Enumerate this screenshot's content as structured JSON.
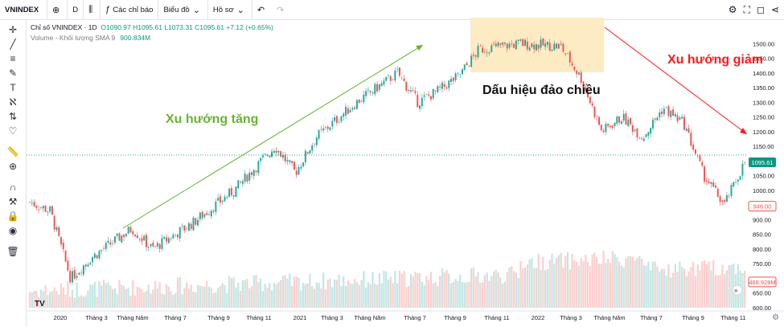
{
  "toolbar": {
    "symbol": "VNINDEX",
    "interval": "D",
    "indicators_label": "Các chỉ báo",
    "chart_label": "Biểu đồ",
    "profile_label": "Hồ sơ"
  },
  "legend": {
    "symbol_line": "Chỉ số VNINDEX · 1D",
    "ohlc": "O1090.97 H1095.61 L1073.31 C1095.61 +7.12 (+0.65%)",
    "volume_label": "Volume - Khối lượng SMA 9",
    "volume_value": "900.834M"
  },
  "annotations": {
    "up_trend": "Xu hướng tăng",
    "reversal": "Dấu hiệu đảo chiều",
    "down_trend": "Xu hướng giảm"
  },
  "colors": {
    "up": "#26a69a",
    "down": "#ef5350",
    "up_trend_arrow": "#69b335",
    "down_trend_arrow": "#ff1a1a",
    "reversal_box": "#fde9b8"
  },
  "chart_data": {
    "type": "candlestick",
    "title": "Chỉ số VNINDEX · 1D",
    "ylim": [
      600,
      1550
    ],
    "y_ticks": [
      600,
      650,
      700,
      750,
      800,
      850,
      900,
      950,
      1000,
      1050,
      1100,
      1150,
      1200,
      1250,
      1300,
      1350,
      1400,
      1450,
      1500
    ],
    "x_ticks": [
      "2020",
      "Tháng 3",
      "Tháng Năm",
      "Tháng 7",
      "Tháng 9",
      "Tháng 11",
      "2021",
      "Tháng 3",
      "Tháng Năm",
      "Tháng 7",
      "Tháng 9",
      "Tháng 11",
      "2022",
      "Tháng 3",
      "Tháng Năm",
      "Tháng 7",
      "Tháng 9",
      "Tháng 11"
    ],
    "last_price_label": "1095.61",
    "price_label_2": "946.00",
    "volume_label": "488.928M",
    "trend_path": [
      {
        "date": "2020-01",
        "close": 960
      },
      {
        "date": "2020-02",
        "close": 930
      },
      {
        "date": "2020-03",
        "close": 700
      },
      {
        "date": "2020-04",
        "close": 770
      },
      {
        "date": "2020-06",
        "close": 870
      },
      {
        "date": "2020-07",
        "close": 800
      },
      {
        "date": "2020-09",
        "close": 890
      },
      {
        "date": "2020-11",
        "close": 1000
      },
      {
        "date": "2021-01",
        "close": 1150
      },
      {
        "date": "2021-02",
        "close": 1060
      },
      {
        "date": "2021-03",
        "close": 1180
      },
      {
        "date": "2021-05",
        "close": 1300
      },
      {
        "date": "2021-07",
        "close": 1400
      },
      {
        "date": "2021-08",
        "close": 1300
      },
      {
        "date": "2021-09",
        "close": 1340
      },
      {
        "date": "2021-10",
        "close": 1390
      },
      {
        "date": "2021-11",
        "close": 1480
      },
      {
        "date": "2022-01",
        "close": 1500
      },
      {
        "date": "2022-03",
        "close": 1490
      },
      {
        "date": "2022-04",
        "close": 1380
      },
      {
        "date": "2022-05",
        "close": 1200
      },
      {
        "date": "2022-06",
        "close": 1250
      },
      {
        "date": "2022-07",
        "close": 1180
      },
      {
        "date": "2022-08",
        "close": 1280
      },
      {
        "date": "2022-09",
        "close": 1230
      },
      {
        "date": "2022-10",
        "close": 1050
      },
      {
        "date": "2022-11",
        "close": 950
      },
      {
        "date": "2022-12",
        "close": 1095.61
      }
    ]
  }
}
